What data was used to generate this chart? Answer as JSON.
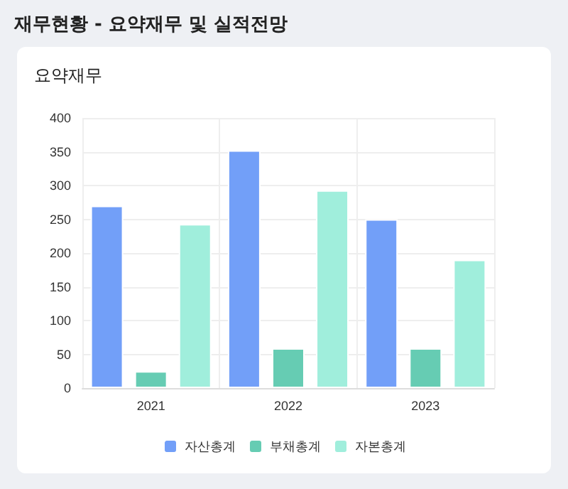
{
  "chart_data": {
    "type": "bar",
    "title": "재무현황 - 요약재무 및 실적전망",
    "subtitle": "요약재무",
    "categories": [
      "2021",
      "2022",
      "2023"
    ],
    "series": [
      {
        "name": "자산총계",
        "color": "#729ff8",
        "values": [
          270,
          352,
          250
        ]
      },
      {
        "name": "부채총계",
        "color": "#66ccb3",
        "values": [
          25,
          59,
          59
        ]
      },
      {
        "name": "자본총계",
        "color": "#a0eedc",
        "values": [
          243,
          293,
          190
        ]
      }
    ],
    "ylim": [
      0,
      400
    ],
    "yticks": [
      0,
      50,
      100,
      150,
      200,
      250,
      300,
      350,
      400
    ],
    "grid": true,
    "legend": "bottom"
  }
}
